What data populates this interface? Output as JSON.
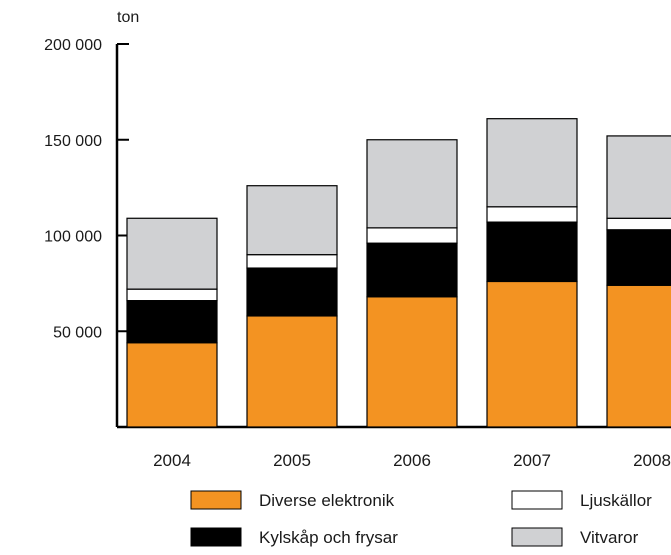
{
  "chart_data": {
    "type": "bar",
    "stacked": true,
    "unit_label": "ton",
    "ylim": [
      0,
      200000
    ],
    "y_ticks": [
      {
        "value": 50000,
        "label": "50 000"
      },
      {
        "value": 100000,
        "label": "100 000"
      },
      {
        "value": 150000,
        "label": "150 000"
      },
      {
        "value": 200000,
        "label": "200 000"
      }
    ],
    "categories": [
      "2004",
      "2005",
      "2006",
      "2007",
      "2008"
    ],
    "series": [
      {
        "name": "Diverse elektronik",
        "color": "#f39322",
        "values": [
          44000,
          58000,
          68000,
          76000,
          74000
        ]
      },
      {
        "name": "Kylskåp och frysar",
        "color": "#000000",
        "values": [
          22000,
          25000,
          28000,
          31000,
          29000
        ]
      },
      {
        "name": "Ljuskällor",
        "color": "#ffffff",
        "values": [
          6000,
          7000,
          8000,
          8000,
          6000
        ]
      },
      {
        "name": "Vitvaror",
        "color": "#d0d1d3",
        "values": [
          37000,
          36000,
          46000,
          46000,
          43000
        ]
      }
    ],
    "grid": false,
    "legend_position": "bottom"
  }
}
